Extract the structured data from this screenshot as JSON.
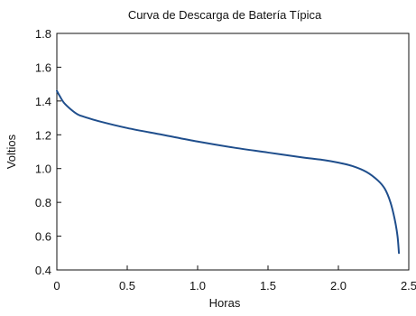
{
  "chart_data": {
    "type": "line",
    "title": "Curva de Descarga de Batería Típica",
    "xlabel": "Horas",
    "ylabel": "Voltios",
    "xlim": [
      0,
      2.5
    ],
    "ylim": [
      0.4,
      1.8
    ],
    "x_ticks": [
      0,
      0.5,
      1.0,
      1.5,
      2.0,
      2.5
    ],
    "x_tick_labels": [
      "0",
      "0.5",
      "1.0",
      "1.5",
      "2.0",
      "2.5"
    ],
    "y_ticks": [
      0.4,
      0.6,
      0.8,
      1.0,
      1.2,
      1.4,
      1.6,
      1.8
    ],
    "y_tick_labels": [
      "0.4",
      "0.6",
      "0.8",
      "1.0",
      "1.2",
      "1.4",
      "1.6",
      "1.8"
    ],
    "grid": false,
    "legend": "none",
    "series": [
      {
        "color": "#1f4e8c",
        "x": [
          0,
          0.02,
          0.05,
          0.1,
          0.15,
          0.2,
          0.3,
          0.5,
          0.75,
          1.0,
          1.25,
          1.5,
          1.75,
          1.9,
          2.0,
          2.1,
          2.2,
          2.28,
          2.33,
          2.37,
          2.4,
          2.42,
          2.43
        ],
        "y": [
          1.46,
          1.43,
          1.39,
          1.35,
          1.32,
          1.305,
          1.28,
          1.24,
          1.2,
          1.16,
          1.125,
          1.095,
          1.065,
          1.05,
          1.035,
          1.015,
          0.98,
          0.93,
          0.88,
          0.8,
          0.7,
          0.6,
          0.5
        ]
      }
    ]
  }
}
